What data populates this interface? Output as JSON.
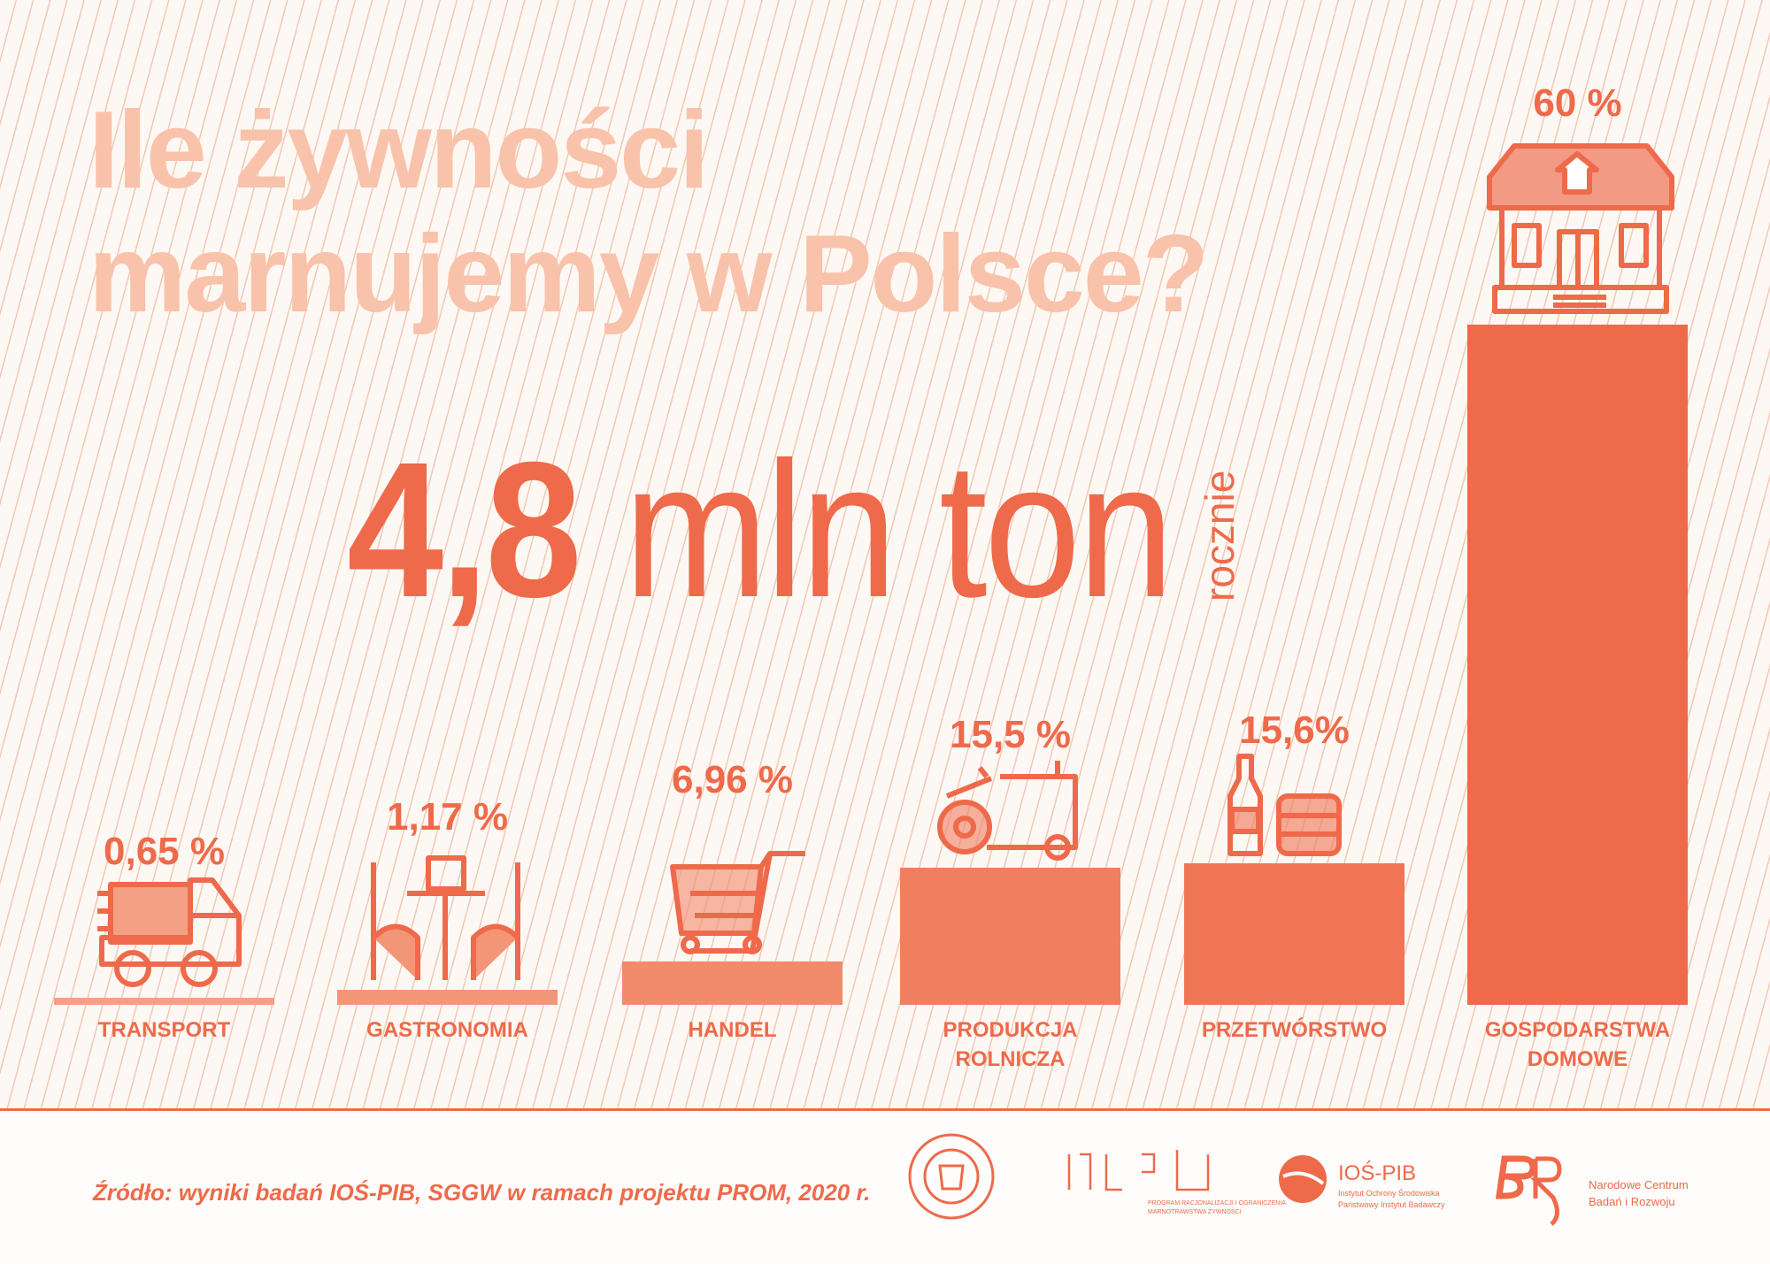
{
  "title": {
    "line1": "Ile żywności",
    "line2": "marnujemy w Polsce?"
  },
  "headline": {
    "value": "4,8",
    "unit": "mln ton",
    "period": "rocznie"
  },
  "chart_data": {
    "type": "bar",
    "categories": [
      "TRANSPORT",
      "GASTRONOMIA",
      "HANDEL",
      "PRODUKCJA ROLNICZA",
      "PRZETWÓRSTWO",
      "GOSPODARSTWA DOMOWE"
    ],
    "values": [
      0.65,
      1.17,
      6.96,
      15.5,
      15.6,
      60
    ],
    "value_labels": [
      "0,65 %",
      "1,17 %",
      "6,96 %",
      "15,5 %",
      "15,6%",
      "60 %"
    ],
    "category_lines": [
      [
        "TRANSPORT"
      ],
      [
        "GASTRONOMIA"
      ],
      [
        "HANDEL"
      ],
      [
        "PRODUKCJA",
        "ROLNICZA"
      ],
      [
        "PRZETWÓRSTWO"
      ],
      [
        "GOSPODARSTWA",
        "DOMOWE"
      ]
    ],
    "icons": [
      "truck-icon",
      "restaurant-table-icon",
      "shopping-cart-icon",
      "tractor-icon",
      "bottle-and-can-icon",
      "house-icon"
    ],
    "colors": [
      "#f4a085",
      "#f39678",
      "#f28a6c",
      "#f07f60",
      "#ef7556",
      "#ee6a4a"
    ],
    "title": "",
    "xlabel": "",
    "ylabel": "",
    "grid": false
  },
  "footer": {
    "source": "Źródło: wyniki badań IOŚ-PIB, SGGW w ramach projektu PROM, 2020 r.",
    "logos": {
      "jbw": "JEDŹ BEZ WYRZUTÓW",
      "prom": "PROM",
      "prom_sub1": "PROGRAM RACJONALIZACJI I OGRANICZENIA",
      "prom_sub2": "MARNOTRAWSTWA ŻYWNOŚCI",
      "ios": "IOŚ-PIB",
      "ios_sub1": "Instytut Ochrony Środowiska",
      "ios_sub2": "Państwowy Instytut Badawczy",
      "ncbr": "BR",
      "ncbr_sub1": "Narodowe Centrum",
      "ncbr_sub2": "Badań i Rozwoju"
    }
  },
  "colors": {
    "accent": "#ee6a4a",
    "title": "#f9c2aa",
    "background": "#fdf8f3"
  }
}
